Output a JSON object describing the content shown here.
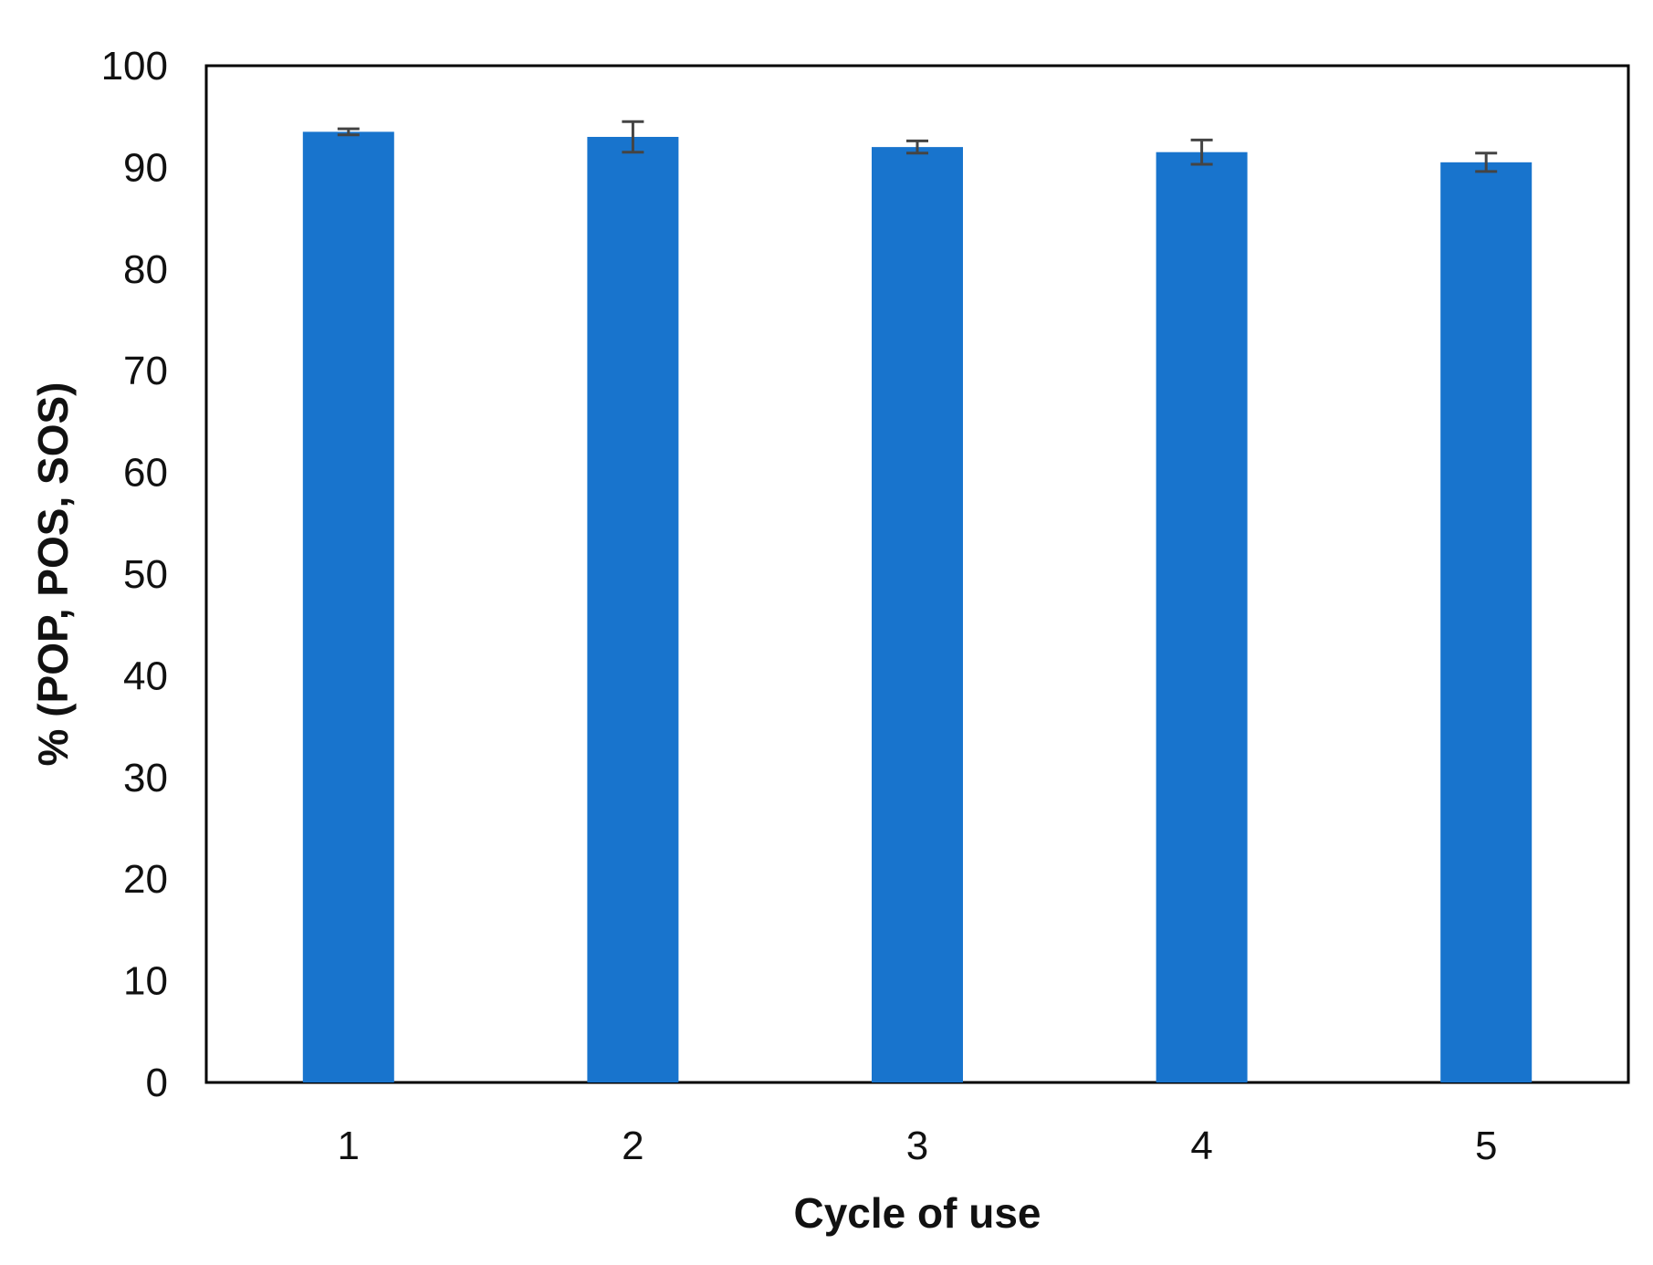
{
  "chart_data": {
    "type": "bar",
    "title": "",
    "xlabel": "Cycle of use",
    "ylabel": "% (POP, POS, SOS)",
    "categories": [
      "1",
      "2",
      "3",
      "4",
      "5"
    ],
    "values": [
      93.5,
      93.0,
      92.0,
      91.5,
      90.5
    ],
    "error": [
      0.3,
      1.5,
      0.6,
      1.2,
      0.9
    ],
    "ylim": [
      0,
      100
    ],
    "yticks": [
      0,
      10,
      20,
      30,
      40,
      50,
      60,
      70,
      80,
      90,
      100
    ],
    "grid": false,
    "legend": "none",
    "colors": {
      "bar": "#1874CD",
      "error_bar": "#444444",
      "axis": "#000000"
    }
  }
}
